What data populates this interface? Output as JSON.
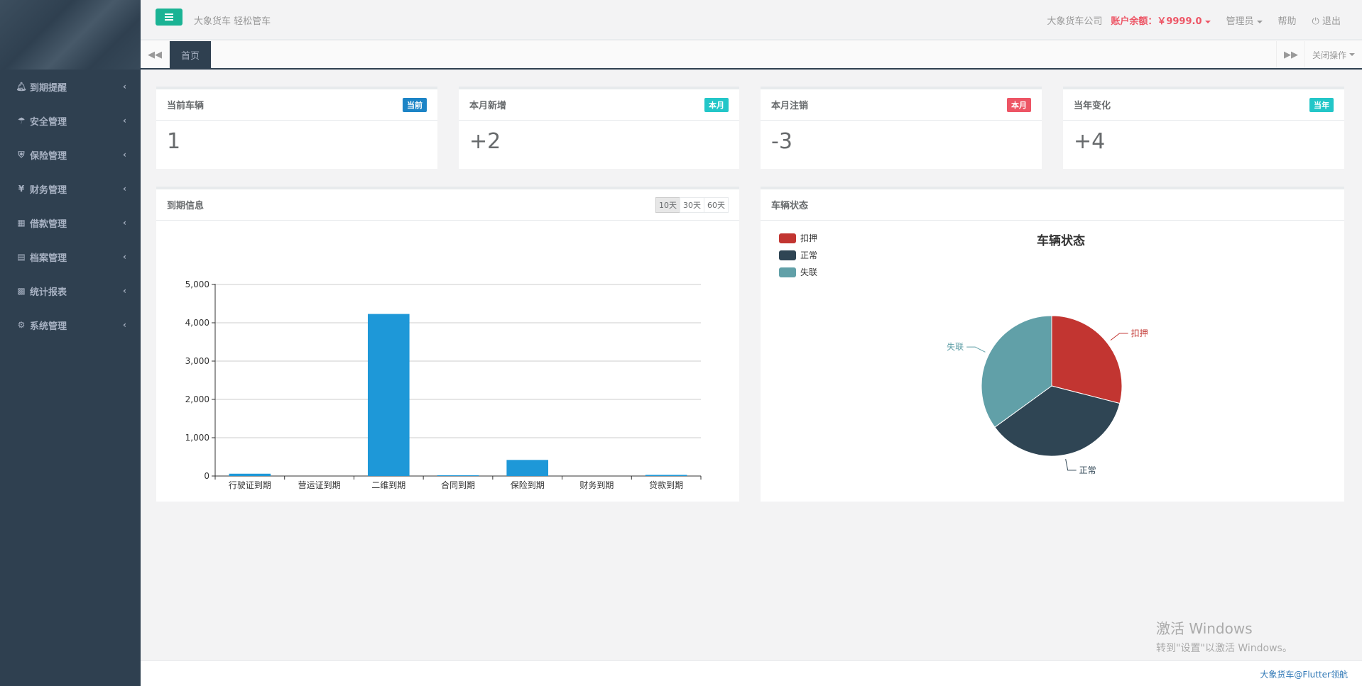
{
  "header": {
    "slogan": "大象货车 轻松管车",
    "company": "大象货车公司",
    "balance": "账户余额：￥9999.0",
    "admin": "管理员",
    "help": "帮助",
    "logout": "退出"
  },
  "sidebar": {
    "items": [
      {
        "label": "到期提醒",
        "icon": "bell-icon"
      },
      {
        "label": "安全管理",
        "icon": "umbrella-icon"
      },
      {
        "label": "保险管理",
        "icon": "shield-icon"
      },
      {
        "label": "财务管理",
        "icon": "yen-icon"
      },
      {
        "label": "借款管理",
        "icon": "calculator-icon"
      },
      {
        "label": "档案管理",
        "icon": "file-icon"
      },
      {
        "label": "统计报表",
        "icon": "bar-chart-icon"
      },
      {
        "label": "系统管理",
        "icon": "gear-icon"
      }
    ]
  },
  "tabs": {
    "active": "首页",
    "close_ops": "关闭操作"
  },
  "stats": [
    {
      "title": "当前车辆",
      "badge": "当前",
      "value": "1",
      "color": "#1c84c6"
    },
    {
      "title": "本月新增",
      "badge": "本月",
      "value": "+2",
      "color": "#23c6c8"
    },
    {
      "title": "本月注销",
      "badge": "本月",
      "value": "-3",
      "color": "#ed5565"
    },
    {
      "title": "当年变化",
      "badge": "当年",
      "value": "+4",
      "color": "#23c6c8"
    }
  ],
  "expiry_panel": {
    "title": "到期信息",
    "ranges": [
      "10天",
      "30天",
      "60天"
    ]
  },
  "status_panel": {
    "title": "车辆状态"
  },
  "chart_data": [
    {
      "type": "bar",
      "categories": [
        "行驶证到期",
        "营运证到期",
        "二维到期",
        "合同到期",
        "保险到期",
        "财务到期",
        "贷款到期"
      ],
      "values": [
        60,
        0,
        4230,
        20,
        420,
        0,
        30
      ],
      "ylim": [
        0,
        5000
      ],
      "yticks": [
        "0",
        "1,000",
        "2,000",
        "3,000",
        "4,000",
        "5,000"
      ],
      "color": "#1e98d8",
      "grid": true
    },
    {
      "type": "pie",
      "title": "车辆状态",
      "labels": [
        "扣押",
        "正常",
        "失联"
      ],
      "values": [
        29,
        36,
        35
      ],
      "colors": [
        "#c23531",
        "#2f4554",
        "#61a0a8"
      ],
      "legend": "top-left"
    }
  ],
  "footer": {
    "text": "大象货车@Flutter领航"
  },
  "watermark": {
    "line1": "激活 Windows",
    "line2": "转到\"设置\"以激活 Windows。"
  }
}
